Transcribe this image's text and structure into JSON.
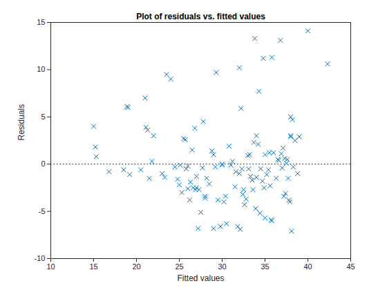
{
  "chart_data": {
    "type": "scatter",
    "title": "Plot of residuals vs. fitted values",
    "x_label": "Fitted values",
    "y_label": "Residuals",
    "xlim": [
      10,
      45
    ],
    "ylim": [
      -10,
      15
    ],
    "xticks": [
      10,
      15,
      20,
      25,
      30,
      35,
      40,
      45
    ],
    "yticks": [
      -10,
      -5,
      0,
      5,
      10,
      15
    ],
    "grid": false,
    "marker": "x",
    "color": "#0072bd",
    "reference_lines": [
      {
        "y": 0,
        "line_style": "dotted"
      }
    ],
    "x": [
      15,
      15.2,
      15.3,
      16.8,
      18.5,
      18.9,
      19,
      19.2,
      20.5,
      21,
      21.1,
      21.3,
      21.5,
      21.8,
      22,
      23,
      23.3,
      23.5,
      24,
      24.5,
      24.8,
      25,
      25.1,
      25.3,
      25.5,
      25.7,
      25.8,
      26,
      26,
      26.2,
      26.3,
      26.5,
      26.6,
      26.8,
      26.9,
      27,
      27,
      27.2,
      27.3,
      27.5,
      27.7,
      27.8,
      28,
      28,
      28.2,
      28.5,
      28.8,
      29,
      29,
      29.2,
      29.3,
      29.5,
      29.8,
      30,
      30,
      30.2,
      30.4,
      30.5,
      30.8,
      31,
      31.2,
      31.5,
      31.6,
      31.8,
      32,
      32,
      32.1,
      32.2,
      32.3,
      32.4,
      32.5,
      32.6,
      32.8,
      33,
      33.1,
      33.2,
      33.3,
      33.5,
      33.6,
      33.7,
      33.8,
      33.9,
      34,
      34,
      34.2,
      34.3,
      34.4,
      34.5,
      34.7,
      34.8,
      34.9,
      35,
      35,
      35.2,
      35.4,
      35.5,
      35.6,
      35.7,
      35.8,
      35.8,
      36,
      36.3,
      36.5,
      36.6,
      36.8,
      36.9,
      37,
      37.1,
      37.2,
      37.3,
      37.4,
      37.5,
      37.6,
      37.7,
      37.8,
      37.9,
      38,
      38,
      38,
      38.1,
      38.2,
      38.3,
      38.5,
      38.8,
      39,
      40,
      42.3
    ],
    "values": [
      4,
      1.8,
      0.8,
      -0.8,
      -0.6,
      6.1,
      6,
      -1.1,
      -0.6,
      7,
      3.9,
      3.6,
      -1.5,
      0.3,
      3,
      -1,
      -1.4,
      9.5,
      9,
      -0.3,
      -1.6,
      -2.2,
      -0.1,
      -3,
      2.7,
      2.6,
      -0.5,
      -2.6,
      -0.2,
      -3.8,
      -1.9,
      1.5,
      -2.5,
      3.8,
      -2.7,
      -2.5,
      -1.3,
      -6.8,
      -2.7,
      -5.1,
      -0.4,
      4.5,
      -3.4,
      -3.6,
      -1.5,
      -2.1,
      1.4,
      1,
      -6.8,
      -0.3,
      9.7,
      -3.8,
      -6.6,
      -0.1,
      0,
      -4,
      -3.4,
      -6.3,
      1.9,
      -0.1,
      0.3,
      -2.4,
      -0.8,
      -6.6,
      10.2,
      -1,
      -6.9,
      5.9,
      -0.5,
      -3.2,
      -2.7,
      -4.3,
      -3.7,
      0.9,
      -0.5,
      1,
      -1.3,
      -1.7,
      -2.7,
      2.3,
      13.3,
      -4.7,
      3,
      -1.4,
      2.1,
      7.7,
      -5.2,
      -0.5,
      -1.8,
      11.2,
      -2.5,
      -5.7,
      1,
      -1.1,
      -0.6,
      1.2,
      -2.3,
      -5.9,
      -6,
      11.3,
      1.2,
      -1.5,
      0.5,
      0.4,
      13.1,
      1.1,
      -0.4,
      1.7,
      -3.4,
      0.6,
      -3.1,
      0.1,
      0.5,
      -1.5,
      -3.8,
      -4,
      5,
      3,
      2.9,
      -7.1,
      4.7,
      -0.3,
      2.5,
      -1,
      2.9,
      14.1,
      10.6
    ]
  }
}
